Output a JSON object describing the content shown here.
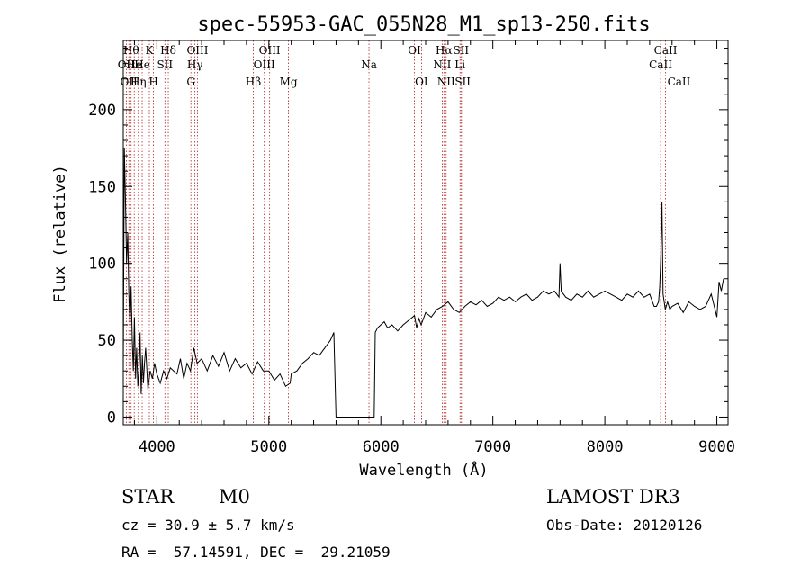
{
  "chart_data": {
    "type": "line",
    "title": "spec-55953-GAC_055N28_M1_sp13-250.fits",
    "xlabel": "Wavelength (Å)",
    "ylabel": "Flux (relative)",
    "xlim": [
      3700,
      9100
    ],
    "ylim": [
      -5,
      245
    ],
    "xticks": [
      4000,
      5000,
      6000,
      7000,
      8000,
      9000
    ],
    "yticks": [
      0,
      50,
      100,
      150,
      200
    ],
    "grid": false,
    "series": [
      {
        "x": [
          3700,
          3710,
          3720,
          3730,
          3740,
          3750,
          3760,
          3770,
          3780,
          3790,
          3800,
          3810,
          3820,
          3830,
          3840,
          3850,
          3860,
          3870,
          3880,
          3890,
          3900,
          3920,
          3940,
          3960,
          3980,
          4000,
          4030,
          4060,
          4090,
          4120,
          4150,
          4180,
          4210,
          4240,
          4270,
          4300,
          4330,
          4360,
          4400,
          4450,
          4500,
          4550,
          4600,
          4650,
          4700,
          4750,
          4800,
          4850,
          4900,
          4950,
          5000,
          5050,
          5100,
          5150,
          5190,
          5200,
          5250,
          5300,
          5350,
          5400,
          5450,
          5500,
          5550,
          5580,
          5600,
          5650,
          5700,
          5750,
          5800,
          5850,
          5900,
          5930,
          5940,
          5950,
          5970,
          6000,
          6030,
          6060,
          6100,
          6150,
          6200,
          6250,
          6300,
          6320,
          6340,
          6360,
          6400,
          6450,
          6500,
          6550,
          6600,
          6650,
          6700,
          6750,
          6800,
          6850,
          6900,
          6950,
          7000,
          7050,
          7100,
          7150,
          7200,
          7250,
          7300,
          7350,
          7400,
          7450,
          7500,
          7550,
          7590,
          7600,
          7610,
          7650,
          7700,
          7750,
          7800,
          7850,
          7900,
          7950,
          8000,
          8050,
          8100,
          8150,
          8200,
          8250,
          8300,
          8350,
          8400,
          8440,
          8460,
          8480,
          8490,
          8500,
          8510,
          8520,
          8540,
          8560,
          8580,
          8600,
          8650,
          8700,
          8750,
          8800,
          8850,
          8900,
          8950,
          9000,
          9020,
          9040,
          9060
        ],
        "y": [
          30,
          175,
          140,
          100,
          120,
          80,
          60,
          85,
          50,
          30,
          65,
          25,
          45,
          20,
          30,
          55,
          15,
          40,
          22,
          35,
          45,
          18,
          30,
          25,
          35,
          28,
          22,
          30,
          25,
          32,
          30,
          28,
          38,
          25,
          35,
          30,
          45,
          35,
          38,
          30,
          40,
          33,
          42,
          30,
          38,
          32,
          35,
          28,
          36,
          30,
          30,
          24,
          28,
          20,
          22,
          28,
          30,
          35,
          38,
          42,
          40,
          45,
          50,
          55,
          0,
          0,
          0,
          0,
          0,
          0,
          0,
          0,
          0,
          55,
          58,
          60,
          62,
          58,
          60,
          56,
          60,
          63,
          66,
          58,
          64,
          60,
          68,
          65,
          70,
          72,
          75,
          70,
          68,
          72,
          75,
          73,
          76,
          72,
          74,
          78,
          76,
          78,
          75,
          78,
          80,
          76,
          78,
          82,
          80,
          82,
          78,
          100,
          82,
          78,
          76,
          80,
          78,
          82,
          78,
          80,
          82,
          80,
          78,
          76,
          80,
          78,
          82,
          78,
          80,
          72,
          72,
          75,
          85,
          105,
          140,
          80,
          70,
          75,
          70,
          72,
          74,
          68,
          75,
          72,
          70,
          72,
          80,
          65,
          88,
          82,
          90
        ]
      }
    ],
    "lines": [
      {
        "x": 3727,
        "label": "OII",
        "row": 2
      },
      {
        "x": 3750,
        "label": "OII",
        "row": 3
      },
      {
        "x": 3770,
        "label": "Hθ",
        "row": 1
      },
      {
        "x": 3798,
        "label": "He",
        "row": 2
      },
      {
        "x": 3835,
        "label": "Hη",
        "row": 3
      },
      {
        "x": 3869,
        "label": "He",
        "row": 2
      },
      {
        "x": 3933,
        "label": "K",
        "row": 1
      },
      {
        "x": 3970,
        "label": "H",
        "row": 3
      },
      {
        "x": 4072,
        "label": "SII",
        "row": 2
      },
      {
        "x": 4102,
        "label": "Hδ",
        "row": 1
      },
      {
        "x": 4304,
        "label": "G",
        "row": 3
      },
      {
        "x": 4340,
        "label": "Hγ",
        "row": 2
      },
      {
        "x": 4363,
        "label": "OIII",
        "row": 1
      },
      {
        "x": 4861,
        "label": "Hβ",
        "row": 3
      },
      {
        "x": 4959,
        "label": "OIII",
        "row": 2
      },
      {
        "x": 5007,
        "label": "OIII",
        "row": 1
      },
      {
        "x": 5175,
        "label": "Mg",
        "row": 3
      },
      {
        "x": 5894,
        "label": "Na",
        "row": 2
      },
      {
        "x": 6300,
        "label": "OI",
        "row": 1
      },
      {
        "x": 6363,
        "label": "OI",
        "row": 3
      },
      {
        "x": 6548,
        "label": "NII",
        "row": 2
      },
      {
        "x": 6563,
        "label": "Hα",
        "row": 1
      },
      {
        "x": 6583,
        "label": "NII",
        "row": 3
      },
      {
        "x": 6707,
        "label": "Li",
        "row": 2
      },
      {
        "x": 6716,
        "label": "SII",
        "row": 1
      },
      {
        "x": 6731,
        "label": "SII",
        "row": 3
      },
      {
        "x": 8498,
        "label": "CaII",
        "row": 2
      },
      {
        "x": 8542,
        "label": "CaII",
        "row": 1
      },
      {
        "x": 8662,
        "label": "CaII",
        "row": 3
      }
    ]
  },
  "info": {
    "class_label": "STAR",
    "subclass": "M0",
    "survey": "LAMOST DR3",
    "cz": "cz = 30.9 ± 5.7 km/s",
    "obs_date": "Obs-Date: 20120126",
    "coords": "RA =  57.14591, DEC =  29.21059"
  }
}
